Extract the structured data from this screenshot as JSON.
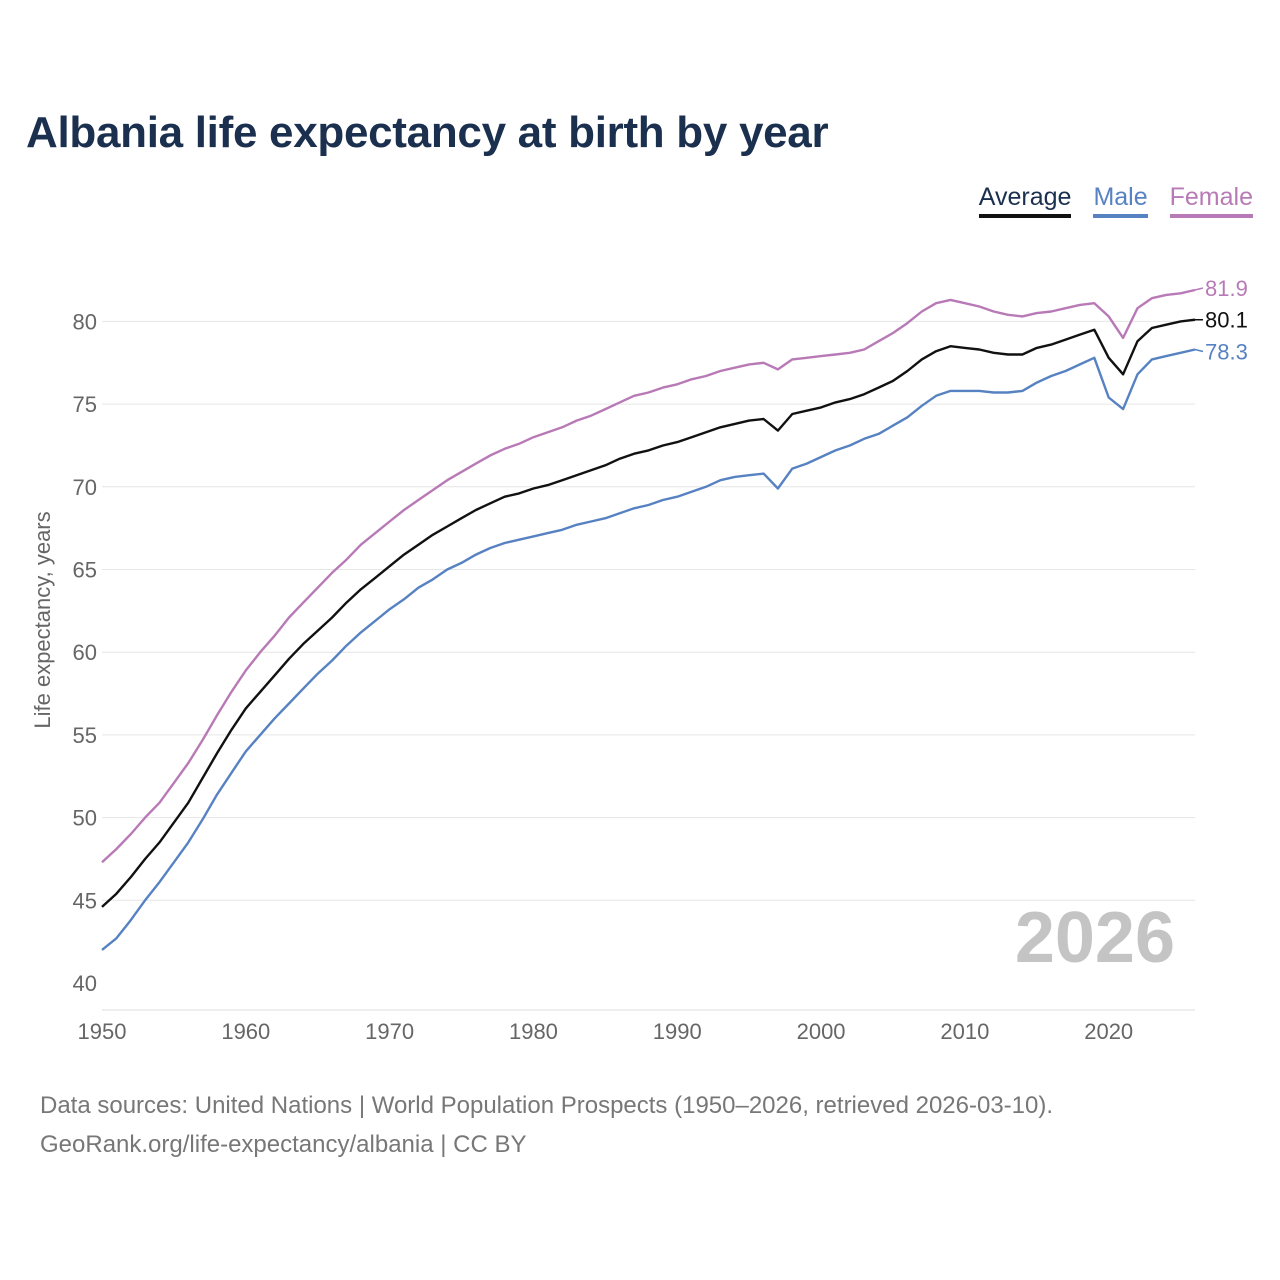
{
  "title": "Albania life expectancy at birth by year",
  "legend": [
    {
      "label": "Average",
      "color": "#111111"
    },
    {
      "label": "Male",
      "color": "#5782c2"
    },
    {
      "label": "Female",
      "color": "#b87ab6"
    }
  ],
  "source": {
    "line1": "Data sources: United Nations | World Population Prospects (1950–2026, retrieved 2026-03-10).",
    "line2": "GeoRank.org/life-expectancy/albania | CC BY"
  },
  "chart_data": {
    "type": "line",
    "title": "Albania life expectancy at birth by year",
    "xlabel": "",
    "ylabel": "Life expectancy, years",
    "xlim": [
      1950,
      2026
    ],
    "ylim": [
      40,
      83
    ],
    "x_ticks": [
      1950,
      1960,
      1970,
      1980,
      1990,
      2000,
      2010,
      2020
    ],
    "y_ticks": [
      40,
      45,
      50,
      55,
      60,
      65,
      70,
      75,
      80
    ],
    "grid": true,
    "legend_position": "top-right",
    "year_label": "2026",
    "x": [
      1950,
      1951,
      1952,
      1953,
      1954,
      1955,
      1956,
      1957,
      1958,
      1959,
      1960,
      1961,
      1962,
      1963,
      1964,
      1965,
      1966,
      1967,
      1968,
      1969,
      1970,
      1971,
      1972,
      1973,
      1974,
      1975,
      1976,
      1977,
      1978,
      1979,
      1980,
      1981,
      1982,
      1983,
      1984,
      1985,
      1986,
      1987,
      1988,
      1989,
      1990,
      1991,
      1992,
      1993,
      1994,
      1995,
      1996,
      1997,
      1998,
      1999,
      2000,
      2001,
      2002,
      2003,
      2004,
      2005,
      2006,
      2007,
      2008,
      2009,
      2010,
      2011,
      2012,
      2013,
      2014,
      2015,
      2016,
      2017,
      2018,
      2019,
      2020,
      2021,
      2022,
      2023,
      2024,
      2025,
      2026
    ],
    "series": [
      {
        "name": "Average",
        "color": "#111111",
        "end_label": "80.1",
        "values": [
          44.6,
          45.4,
          46.4,
          47.5,
          48.5,
          49.7,
          50.9,
          52.4,
          53.9,
          55.3,
          56.6,
          57.6,
          58.6,
          59.6,
          60.5,
          61.3,
          62.1,
          63.0,
          63.8,
          64.5,
          65.2,
          65.9,
          66.5,
          67.1,
          67.6,
          68.1,
          68.6,
          69.0,
          69.4,
          69.6,
          69.9,
          70.1,
          70.4,
          70.7,
          71.0,
          71.3,
          71.7,
          72.0,
          72.2,
          72.5,
          72.7,
          73.0,
          73.3,
          73.6,
          73.8,
          74.0,
          74.1,
          73.4,
          74.4,
          74.6,
          74.8,
          75.1,
          75.3,
          75.6,
          76.0,
          76.4,
          77.0,
          77.7,
          78.2,
          78.5,
          78.4,
          78.3,
          78.1,
          78.0,
          78.0,
          78.4,
          78.6,
          78.9,
          79.2,
          79.5,
          77.8,
          76.8,
          78.8,
          79.6,
          79.8,
          80.0,
          80.1
        ]
      },
      {
        "name": "Male",
        "color": "#5782c2",
        "end_label": "78.3",
        "values": [
          42.0,
          42.7,
          43.8,
          45.0,
          46.1,
          47.3,
          48.5,
          49.9,
          51.4,
          52.7,
          54.0,
          55.0,
          56.0,
          56.9,
          57.8,
          58.7,
          59.5,
          60.4,
          61.2,
          61.9,
          62.6,
          63.2,
          63.9,
          64.4,
          65.0,
          65.4,
          65.9,
          66.3,
          66.6,
          66.8,
          67.0,
          67.2,
          67.4,
          67.7,
          67.9,
          68.1,
          68.4,
          68.7,
          68.9,
          69.2,
          69.4,
          69.7,
          70.0,
          70.4,
          70.6,
          70.7,
          70.8,
          69.9,
          71.1,
          71.4,
          71.8,
          72.2,
          72.5,
          72.9,
          73.2,
          73.7,
          74.2,
          74.9,
          75.5,
          75.8,
          75.8,
          75.8,
          75.7,
          75.7,
          75.8,
          76.3,
          76.7,
          77.0,
          77.4,
          77.8,
          75.4,
          74.7,
          76.8,
          77.7,
          77.9,
          78.1,
          78.3
        ]
      },
      {
        "name": "Female",
        "color": "#b87ab6",
        "end_label": "81.9",
        "values": [
          47.3,
          48.1,
          49.0,
          50.0,
          50.9,
          52.1,
          53.3,
          54.7,
          56.2,
          57.6,
          58.9,
          60.0,
          61.0,
          62.1,
          63.0,
          63.9,
          64.8,
          65.6,
          66.5,
          67.2,
          67.9,
          68.6,
          69.2,
          69.8,
          70.4,
          70.9,
          71.4,
          71.9,
          72.3,
          72.6,
          73.0,
          73.3,
          73.6,
          74.0,
          74.3,
          74.7,
          75.1,
          75.5,
          75.7,
          76.0,
          76.2,
          76.5,
          76.7,
          77.0,
          77.2,
          77.4,
          77.5,
          77.1,
          77.7,
          77.8,
          77.9,
          78.0,
          78.1,
          78.3,
          78.8,
          79.3,
          79.9,
          80.6,
          81.1,
          81.3,
          81.1,
          80.9,
          80.6,
          80.4,
          80.3,
          80.5,
          80.6,
          80.8,
          81.0,
          81.1,
          80.3,
          79.0,
          80.8,
          81.4,
          81.6,
          81.7,
          81.9
        ]
      }
    ]
  }
}
